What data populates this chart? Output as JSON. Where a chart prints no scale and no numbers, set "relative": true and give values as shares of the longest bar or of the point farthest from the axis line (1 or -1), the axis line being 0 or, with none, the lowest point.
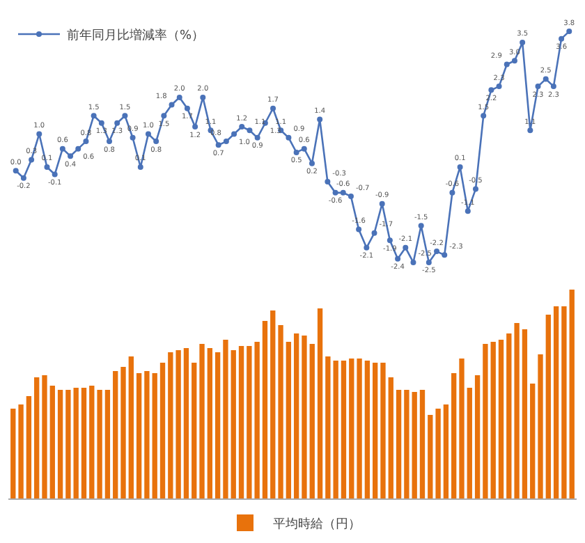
{
  "chart_data": [
    {
      "type": "line",
      "legend": "top left",
      "marker": "circle",
      "categories": [
        null,
        null,
        null,
        null,
        null,
        null,
        null,
        null,
        null,
        null,
        null,
        null,
        null,
        null,
        null,
        null,
        null,
        null,
        null,
        null,
        null,
        null,
        null,
        null,
        null,
        null,
        null,
        null,
        null,
        null,
        null,
        null,
        null,
        null,
        null,
        null,
        null,
        null,
        null,
        null,
        null,
        null,
        null,
        null,
        null,
        null,
        null,
        null,
        null,
        null,
        null,
        null,
        null,
        null,
        null,
        null,
        null,
        null,
        null,
        null,
        null,
        null,
        null,
        null,
        null,
        null,
        null,
        null,
        null,
        null,
        null,
        null
      ],
      "series": [
        {
          "name": "前年同月比増減率（%）",
          "color": "#4a72b8",
          "values": [
            0.0,
            -0.2,
            0.3,
            1.0,
            0.1,
            -0.1,
            0.6,
            0.4,
            0.6,
            0.8,
            1.5,
            1.3,
            0.8,
            1.3,
            1.5,
            0.9,
            0.1,
            1.0,
            0.8,
            1.5,
            1.8,
            2.0,
            1.7,
            1.2,
            2.0,
            1.1,
            0.7,
            0.8,
            1.0,
            1.2,
            1.1,
            0.9,
            1.3,
            1.7,
            1.1,
            0.9,
            0.5,
            0.6,
            0.2,
            1.4,
            -0.3,
            -0.6,
            -0.6,
            -0.7,
            -1.6,
            -2.1,
            -1.7,
            -0.9,
            -1.9,
            -2.4,
            -2.1,
            -2.5,
            -1.5,
            -2.5,
            -2.2,
            -2.3,
            -0.6,
            0.1,
            -1.1,
            -0.5,
            1.5,
            2.2,
            2.3,
            2.9,
            3.0,
            3.5,
            1.1,
            2.3,
            2.5,
            2.3,
            3.6,
            3.8
          ],
          "value_labels": [
            "0.0",
            "-0.2",
            "0.3",
            "1.0",
            "0.1",
            "-0.1",
            "0.6",
            "0.4",
            "0.6",
            "0.8",
            "1.5",
            "1.3",
            "0.8",
            "1.3",
            "1.5",
            "0.9",
            "0.1",
            "1.0",
            "0.8",
            "1.5",
            "1.8",
            "2.0",
            "1.7",
            "1.2",
            "2.0",
            "1.1",
            "0.7",
            "0.8",
            "1.0",
            "1.2",
            "1.1",
            "0.9",
            "1.3",
            "1.7",
            "1.1",
            "0.9",
            "0.5",
            "0.6",
            "0.2",
            "1.4",
            "-0.3",
            "-0.6",
            "-0.6",
            "-0.7",
            "-1.6",
            "-2.1",
            "-1.7",
            "-0.9",
            "-1.9",
            "-2.4",
            "-2.1",
            "-2.5",
            "-1.5",
            "-2.5",
            "-2.2",
            "-2.3",
            "-0.6",
            "0.1",
            "-1.1",
            "-0.5",
            "1.5",
            "2.2",
            "2.3",
            "2.9",
            "3.0",
            "3.5",
            "1.1",
            "2.3",
            "2.5",
            "2.3",
            "3.6",
            "3.8"
          ]
        }
      ]
    },
    {
      "type": "bar",
      "relative": true,
      "legend": "bottom",
      "categories": [
        null,
        null,
        null,
        null,
        null,
        null,
        null,
        null,
        null,
        null,
        null,
        null,
        null,
        null,
        null,
        null,
        null,
        null,
        null,
        null,
        null,
        null,
        null,
        null,
        null,
        null,
        null,
        null,
        null,
        null,
        null,
        null,
        null,
        null,
        null,
        null,
        null,
        null,
        null,
        null,
        null,
        null,
        null,
        null,
        null,
        null,
        null,
        null,
        null,
        null,
        null,
        null,
        null,
        null,
        null,
        null,
        null,
        null,
        null,
        null,
        null,
        null,
        null,
        null,
        null,
        null,
        null,
        null,
        null,
        null,
        null,
        null
      ],
      "series": [
        {
          "name": "平均時給（円）",
          "color": "#e8720c",
          "values": [
            0.43,
            0.45,
            0.49,
            0.58,
            0.59,
            0.54,
            0.52,
            0.52,
            0.53,
            0.53,
            0.54,
            0.52,
            0.52,
            0.61,
            0.63,
            0.68,
            0.6,
            0.61,
            0.6,
            0.65,
            0.7,
            0.71,
            0.72,
            0.65,
            0.74,
            0.72,
            0.7,
            0.76,
            0.71,
            0.73,
            0.73,
            0.75,
            0.85,
            0.9,
            0.83,
            0.75,
            0.79,
            0.78,
            0.74,
            0.91,
            0.68,
            0.66,
            0.66,
            0.67,
            0.67,
            0.66,
            0.65,
            0.65,
            0.58,
            0.52,
            0.52,
            0.51,
            0.52,
            0.4,
            0.43,
            0.45,
            0.6,
            0.67,
            0.53,
            0.59,
            0.74,
            0.75,
            0.76,
            0.79,
            0.84,
            0.81,
            0.55,
            0.69,
            0.88,
            0.92,
            0.92,
            1
          ]
        }
      ]
    }
  ]
}
